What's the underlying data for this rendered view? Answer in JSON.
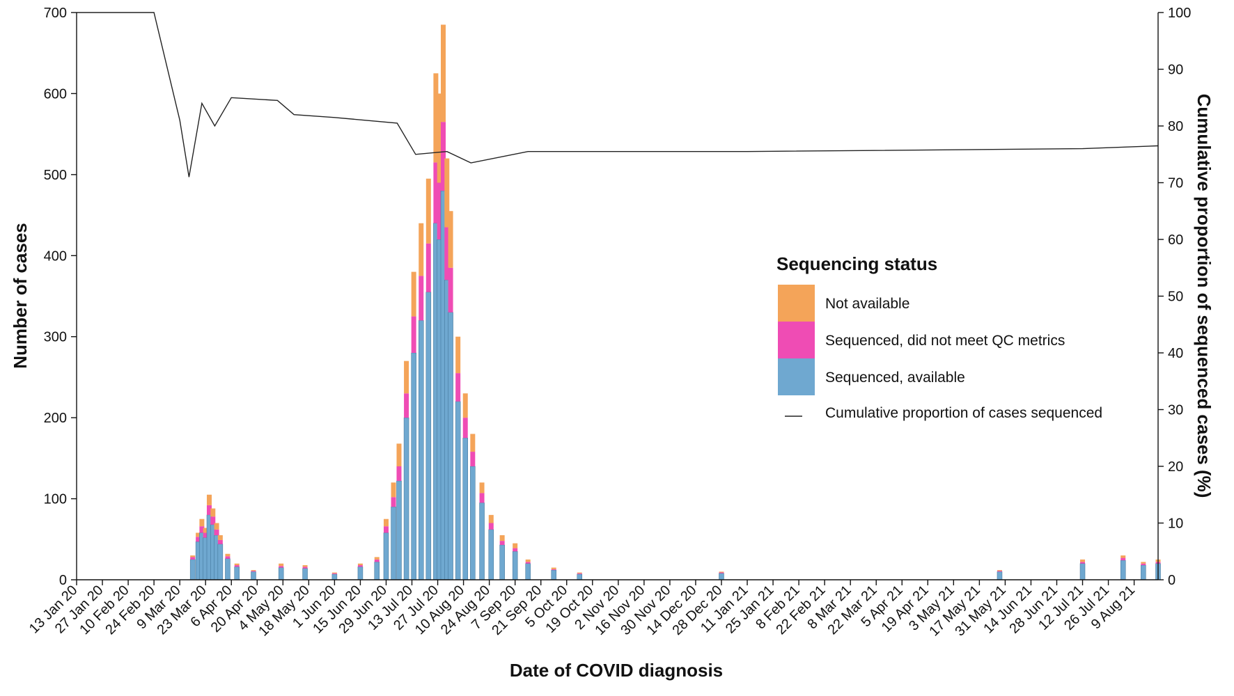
{
  "chart_data": {
    "type": "bar",
    "stacked": true,
    "title": "",
    "xlabel": "Date of COVID diagnosis",
    "ylabel": "Number of cases",
    "y2label": "Cumulative proportion of sequenced cases (%)",
    "ylim": [
      0,
      700
    ],
    "y2lim": [
      0,
      100
    ],
    "yticks": [
      0,
      100,
      200,
      300,
      400,
      500,
      600,
      700
    ],
    "y2ticks": [
      0,
      10,
      20,
      30,
      40,
      50,
      60,
      70,
      80,
      90,
      100
    ],
    "x_start": "2020-01-13",
    "x_end": "2021-08-22",
    "x_tick_dates": [
      "2020-01-13",
      "2020-01-27",
      "2020-02-10",
      "2020-02-24",
      "2020-03-09",
      "2020-03-23",
      "2020-04-06",
      "2020-04-20",
      "2020-05-04",
      "2020-05-18",
      "2020-06-01",
      "2020-06-15",
      "2020-06-29",
      "2020-07-13",
      "2020-07-27",
      "2020-08-10",
      "2020-08-24",
      "2020-09-07",
      "2020-09-21",
      "2020-10-05",
      "2020-10-19",
      "2020-11-02",
      "2020-11-16",
      "2020-11-30",
      "2020-12-14",
      "2020-12-28",
      "2021-01-11",
      "2021-01-25",
      "2021-02-08",
      "2021-02-22",
      "2021-03-08",
      "2021-03-22",
      "2021-04-05",
      "2021-04-19",
      "2021-05-03",
      "2021-05-17",
      "2021-05-31",
      "2021-06-14",
      "2021-06-28",
      "2021-07-12",
      "2021-07-26",
      "2021-08-09"
    ],
    "x_tick_labels": [
      "13 Jan 20",
      "27 Jan 20",
      "10 Feb 20",
      "24 Feb 20",
      "9 Mar 20",
      "23 Mar 20",
      "6 Apr 20",
      "20 Apr 20",
      "4 May 20",
      "18 May 20",
      "1 Jun 20",
      "15 Jun 20",
      "29 Jun 20",
      "13 Jul 20",
      "27 Jul 20",
      "10 Aug 20",
      "24 Aug 20",
      "7 Sep 20",
      "21 Sep 20",
      "5 Oct 20",
      "19 Oct 20",
      "2 Nov 20",
      "16 Nov 20",
      "30 Nov 20",
      "14 Dec 20",
      "28 Dec 20",
      "11 Jan 21",
      "25 Jan 21",
      "8 Feb 21",
      "22 Feb 21",
      "8 Mar 21",
      "22 Mar 21",
      "5 Apr 21",
      "19 Apr 21",
      "3 May 21",
      "17 May 21",
      "31 May 21",
      "14 Jun 21",
      "28 Jun 21",
      "12 Jul 21",
      "26 Jul 21",
      "9 Aug 21"
    ],
    "series": [
      {
        "name": "Not available",
        "color": "#f4a459"
      },
      {
        "name": "Sequenced, did not meet QC metrics",
        "color": "#ef4cb4"
      },
      {
        "name": "Sequenced, available",
        "color": "#6fa8d0"
      }
    ],
    "bars": [
      {
        "date": "2020-03-16",
        "total": 30,
        "qc": 3,
        "seq": 25
      },
      {
        "date": "2020-03-19",
        "total": 58,
        "qc": 6,
        "seq": 47
      },
      {
        "date": "2020-03-21",
        "total": 75,
        "qc": 8,
        "seq": 58
      },
      {
        "date": "2020-03-23",
        "total": 64,
        "qc": 6,
        "seq": 52
      },
      {
        "date": "2020-03-25",
        "total": 105,
        "qc": 12,
        "seq": 80
      },
      {
        "date": "2020-03-27",
        "total": 88,
        "qc": 10,
        "seq": 68
      },
      {
        "date": "2020-03-29",
        "total": 70,
        "qc": 7,
        "seq": 55
      },
      {
        "date": "2020-03-31",
        "total": 55,
        "qc": 5,
        "seq": 44
      },
      {
        "date": "2020-04-04",
        "total": 32,
        "qc": 3,
        "seq": 26
      },
      {
        "date": "2020-04-09",
        "total": 20,
        "qc": 2,
        "seq": 16
      },
      {
        "date": "2020-04-18",
        "total": 12,
        "qc": 1,
        "seq": 10
      },
      {
        "date": "2020-05-03",
        "total": 20,
        "qc": 2,
        "seq": 15
      },
      {
        "date": "2020-05-16",
        "total": 18,
        "qc": 2,
        "seq": 14
      },
      {
        "date": "2020-06-01",
        "total": 9,
        "qc": 1,
        "seq": 7
      },
      {
        "date": "2020-06-15",
        "total": 20,
        "qc": 2,
        "seq": 16
      },
      {
        "date": "2020-06-24",
        "total": 28,
        "qc": 3,
        "seq": 22
      },
      {
        "date": "2020-06-29",
        "total": 75,
        "qc": 8,
        "seq": 58
      },
      {
        "date": "2020-07-03",
        "total": 120,
        "qc": 12,
        "seq": 90
      },
      {
        "date": "2020-07-06",
        "total": 168,
        "qc": 18,
        "seq": 122
      },
      {
        "date": "2020-07-10",
        "total": 270,
        "qc": 30,
        "seq": 200
      },
      {
        "date": "2020-07-14",
        "total": 380,
        "qc": 45,
        "seq": 280
      },
      {
        "date": "2020-07-18",
        "total": 440,
        "qc": 55,
        "seq": 320
      },
      {
        "date": "2020-07-22",
        "total": 495,
        "qc": 60,
        "seq": 355
      },
      {
        "date": "2020-07-26",
        "total": 625,
        "qc": 75,
        "seq": 440
      },
      {
        "date": "2020-07-28",
        "total": 600,
        "qc": 70,
        "seq": 420
      },
      {
        "date": "2020-07-30",
        "total": 685,
        "qc": 85,
        "seq": 480
      },
      {
        "date": "2020-08-01",
        "total": 520,
        "qc": 65,
        "seq": 370
      },
      {
        "date": "2020-08-03",
        "total": 455,
        "qc": 55,
        "seq": 330
      },
      {
        "date": "2020-08-07",
        "total": 300,
        "qc": 35,
        "seq": 220
      },
      {
        "date": "2020-08-11",
        "total": 230,
        "qc": 25,
        "seq": 175
      },
      {
        "date": "2020-08-15",
        "total": 180,
        "qc": 18,
        "seq": 140
      },
      {
        "date": "2020-08-20",
        "total": 120,
        "qc": 12,
        "seq": 95
      },
      {
        "date": "2020-08-25",
        "total": 80,
        "qc": 8,
        "seq": 62
      },
      {
        "date": "2020-08-31",
        "total": 55,
        "qc": 5,
        "seq": 43
      },
      {
        "date": "2020-09-07",
        "total": 45,
        "qc": 4,
        "seq": 35
      },
      {
        "date": "2020-09-14",
        "total": 25,
        "qc": 2,
        "seq": 20
      },
      {
        "date": "2020-09-28",
        "total": 15,
        "qc": 1,
        "seq": 12
      },
      {
        "date": "2020-10-12",
        "total": 9,
        "qc": 1,
        "seq": 7
      },
      {
        "date": "2020-12-28",
        "total": 10,
        "qc": 1,
        "seq": 8
      },
      {
        "date": "2021-05-28",
        "total": 12,
        "qc": 1,
        "seq": 10
      },
      {
        "date": "2021-07-12",
        "total": 25,
        "qc": 2,
        "seq": 20
      },
      {
        "date": "2021-08-03",
        "total": 30,
        "qc": 3,
        "seq": 24
      },
      {
        "date": "2021-08-14",
        "total": 22,
        "qc": 2,
        "seq": 18
      },
      {
        "date": "2021-08-22",
        "total": 25,
        "qc": 2,
        "seq": 20
      }
    ],
    "cumulative_line": [
      {
        "date": "2020-01-13",
        "pct": 100
      },
      {
        "date": "2020-02-24",
        "pct": 100
      },
      {
        "date": "2020-03-09",
        "pct": 81
      },
      {
        "date": "2020-03-14",
        "pct": 71
      },
      {
        "date": "2020-03-21",
        "pct": 84
      },
      {
        "date": "2020-03-28",
        "pct": 80
      },
      {
        "date": "2020-04-06",
        "pct": 85
      },
      {
        "date": "2020-05-01",
        "pct": 84.5
      },
      {
        "date": "2020-05-10",
        "pct": 82
      },
      {
        "date": "2020-06-01",
        "pct": 81.5
      },
      {
        "date": "2020-07-05",
        "pct": 80.5
      },
      {
        "date": "2020-07-15",
        "pct": 75
      },
      {
        "date": "2020-08-01",
        "pct": 75.5
      },
      {
        "date": "2020-08-14",
        "pct": 73.5
      },
      {
        "date": "2020-09-14",
        "pct": 75.5
      },
      {
        "date": "2021-01-11",
        "pct": 75.5
      },
      {
        "date": "2021-07-12",
        "pct": 76
      },
      {
        "date": "2021-08-22",
        "pct": 76.5
      }
    ]
  },
  "legend": {
    "title": "Sequencing status",
    "items": [
      {
        "label": "Not available",
        "color": "#f4a459",
        "kind": "swatch"
      },
      {
        "label": "Sequenced, did not meet QC metrics",
        "color": "#ef4cb4",
        "kind": "swatch"
      },
      {
        "label": "Sequenced, available",
        "color": "#6fa8d0",
        "kind": "swatch"
      },
      {
        "label": "Cumulative proportion of cases sequenced",
        "color": "#222222",
        "kind": "line"
      }
    ]
  }
}
